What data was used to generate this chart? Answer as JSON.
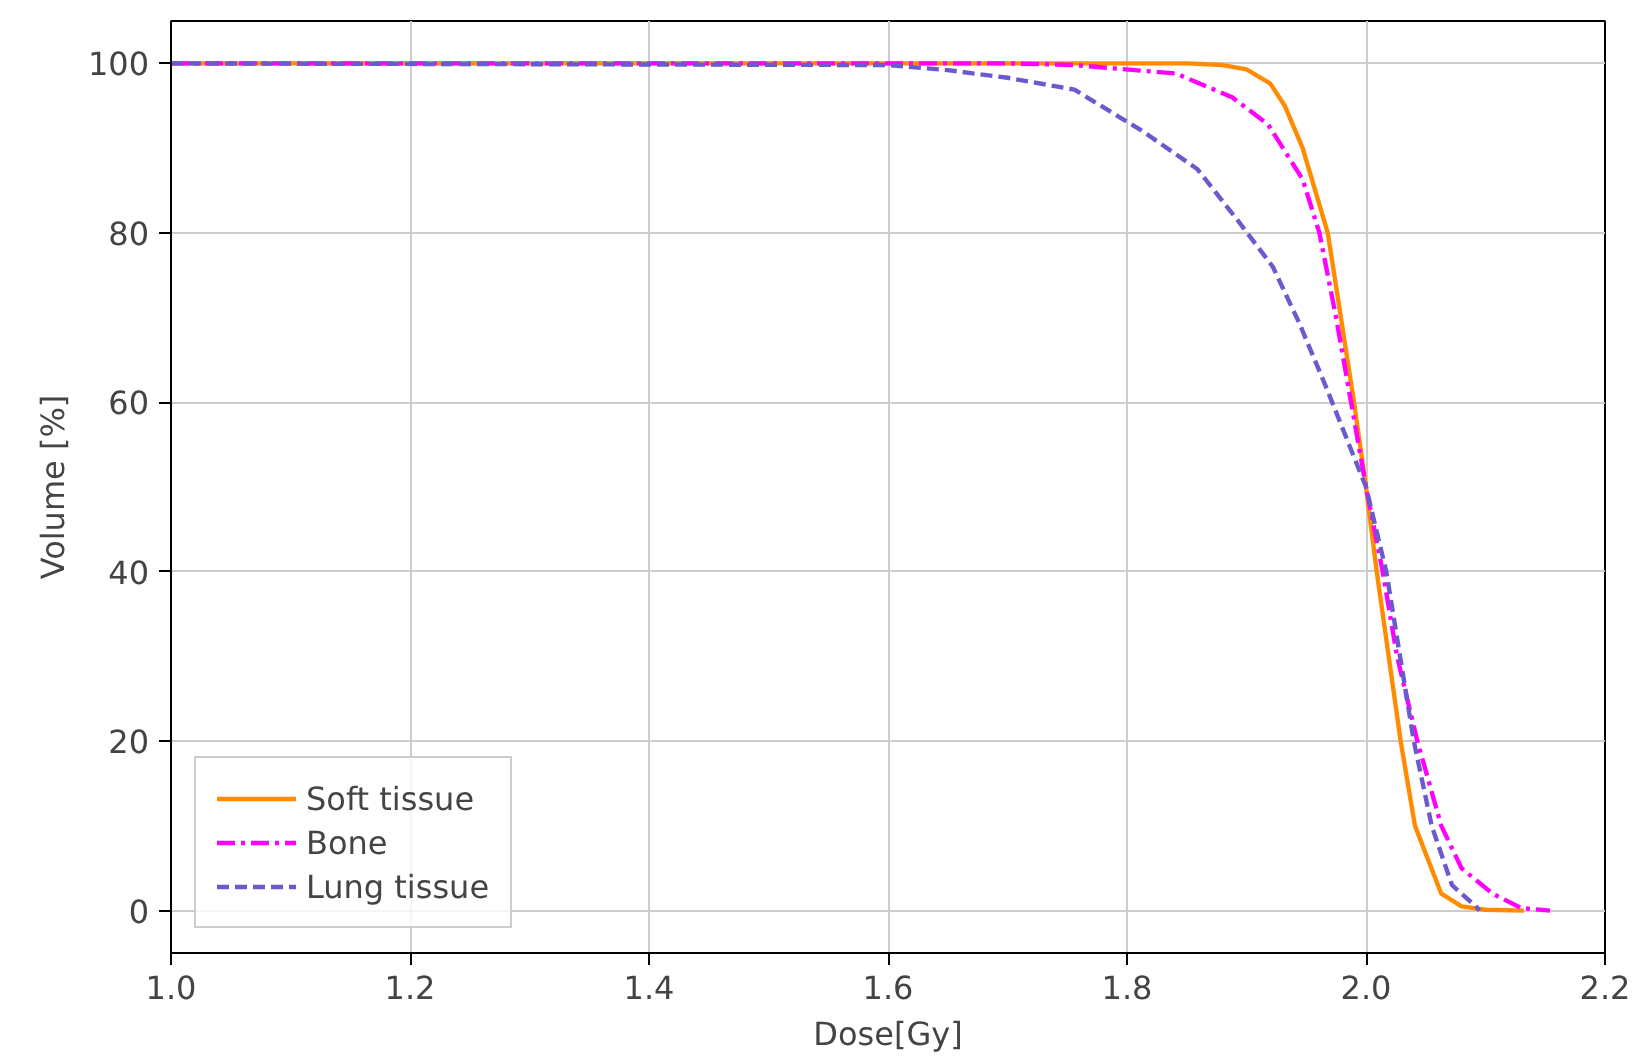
{
  "chart_data": {
    "type": "line",
    "xlabel": "Dose[Gy]",
    "ylabel": "Volume [%]",
    "xlim": [
      1.0,
      2.2
    ],
    "ylim": [
      -5,
      105
    ],
    "xticks": [
      {
        "value": 1.0,
        "label": "1.0"
      },
      {
        "value": 1.2,
        "label": "1.2"
      },
      {
        "value": 1.4,
        "label": "1.4"
      },
      {
        "value": 1.6,
        "label": "1.6"
      },
      {
        "value": 1.8,
        "label": "1.8"
      },
      {
        "value": 2.0,
        "label": "2.0"
      },
      {
        "value": 2.2,
        "label": "2.2"
      }
    ],
    "yticks": [
      0,
      20,
      40,
      60,
      80,
      100
    ],
    "grid": true,
    "legend": "bottom left",
    "marker": "none",
    "series": [
      {
        "name": "Soft tissue",
        "color": "#ff8c00",
        "line_style": "solid",
        "x": [
          1.0,
          1.85,
          1.88,
          1.9,
          1.92,
          1.932,
          1.947,
          1.968,
          1.99,
          2.0,
          2.009,
          2.029,
          2.041,
          2.063,
          2.08,
          2.1,
          2.132
        ],
        "values": [
          100,
          100,
          99.8,
          99.3,
          97.6,
          95,
          90,
          80,
          60,
          50,
          40,
          20,
          10,
          2,
          0.5,
          0.1,
          0
        ]
      },
      {
        "name": "Bone",
        "color": "#ff00ff",
        "line_style": "dashdot",
        "x": [
          1.0,
          1.7,
          1.756,
          1.841,
          1.888,
          1.918,
          1.947,
          1.961,
          1.975,
          2.0,
          2.014,
          2.026,
          2.043,
          2.063,
          2.08,
          2.106,
          2.13,
          2.154
        ],
        "values": [
          100,
          100,
          99.8,
          98.8,
          96,
          92.8,
          86.3,
          80,
          70,
          50,
          40,
          30,
          20,
          10,
          5,
          2,
          0.3,
          0
        ]
      },
      {
        "name": "Lung tissue",
        "color": "#6a5acd",
        "line_style": "dashed",
        "x": [
          1.0,
          1.6,
          1.65,
          1.7,
          1.756,
          1.813,
          1.859,
          1.893,
          1.922,
          1.944,
          1.966,
          1.983,
          2.0,
          2.017,
          2.04,
          2.055,
          2.072,
          2.092,
          2.095
        ],
        "values": [
          100,
          99.8,
          99.2,
          98.3,
          96.9,
          92,
          87.5,
          81.4,
          76,
          69.4,
          62,
          56,
          50,
          40,
          20,
          10,
          3,
          0.5,
          0
        ]
      }
    ]
  }
}
